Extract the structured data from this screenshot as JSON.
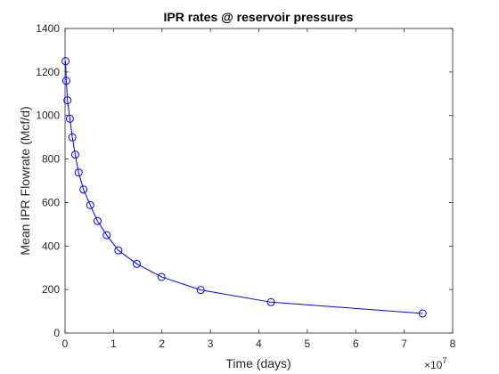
{
  "chart_data": {
    "type": "line",
    "title": "IPR rates @ reservoir pressures",
    "xlabel": "Time (days)",
    "ylabel": "Mean IPR Flowrate (Mcf/d)",
    "x_exponent_base": "×10",
    "x_exponent_power": "7",
    "xlim": [
      0,
      80000000
    ],
    "ylim": [
      0,
      1400
    ],
    "x_ticks": [
      0,
      10000000,
      20000000,
      30000000,
      40000000,
      50000000,
      60000000,
      70000000,
      80000000
    ],
    "x_tick_labels": [
      "0",
      "1",
      "2",
      "3",
      "4",
      "5",
      "6",
      "7",
      "8"
    ],
    "y_ticks": [
      0,
      200,
      400,
      600,
      800,
      1000,
      1200,
      1400
    ],
    "y_tick_labels": [
      "0",
      "200",
      "400",
      "600",
      "800",
      "1000",
      "1200",
      "1400"
    ],
    "grid": false,
    "series": [
      {
        "marker": "circle",
        "color": "#0000ff",
        "x": [
          100000,
          250000,
          500000,
          1000000,
          1500000,
          2100000,
          2800000,
          3800000,
          5200000,
          6700000,
          8600000,
          11000000,
          14800000,
          19900000,
          28000000,
          42500000,
          73800000
        ],
        "y": [
          1250,
          1160,
          1070,
          985,
          900,
          820,
          738,
          660,
          588,
          515,
          450,
          380,
          318,
          258,
          198,
          142,
          90
        ]
      }
    ]
  }
}
